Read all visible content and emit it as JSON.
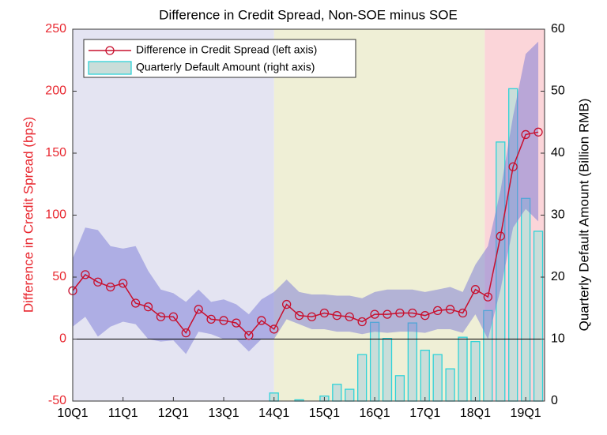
{
  "chart_data": {
    "type": "line_bar",
    "title": "Difference in Credit Spread, Non-SOE minus SOE",
    "ylabel": "Difference in Credit Spread (bps)",
    "y2label": "Quarterly Default Amount (Billion RMB)",
    "categories": [
      "10Q1",
      null,
      null,
      null,
      "11Q1",
      null,
      null,
      null,
      "12Q1",
      null,
      null,
      null,
      "13Q1",
      null,
      null,
      null,
      "14Q1",
      null,
      null,
      null,
      "15Q1",
      null,
      null,
      null,
      "16Q1",
      null,
      null,
      null,
      "17Q1",
      null,
      null,
      null,
      "18Q1",
      null,
      null,
      null,
      "19Q1",
      null
    ],
    "ylim": [
      -50,
      250
    ],
    "yticks": [
      -50,
      0,
      50,
      100,
      150,
      200,
      250
    ],
    "y2lim": [
      0,
      60
    ],
    "y2ticks": [
      0,
      10,
      20,
      30,
      40,
      50,
      60
    ],
    "reference_line": 0,
    "legend": "upper left",
    "series": [
      {
        "name": "Difference in Credit Spread (left axis)",
        "type": "line",
        "color": "#c8102e",
        "band_color": "#7777d6",
        "values": [
          39,
          52,
          46,
          42,
          45,
          29,
          26,
          18,
          18,
          5,
          24,
          16,
          15,
          13,
          3,
          15,
          8,
          28,
          19,
          18,
          21,
          19,
          18,
          14,
          20,
          20,
          21,
          21,
          19,
          23,
          24,
          21,
          40,
          34,
          83,
          139,
          165,
          167
        ],
        "band_upper": [
          65,
          90,
          88,
          75,
          73,
          75,
          55,
          40,
          37,
          30,
          40,
          30,
          32,
          28,
          20,
          32,
          38,
          48,
          38,
          36,
          36,
          35,
          35,
          33,
          38,
          40,
          40,
          40,
          38,
          40,
          42,
          38,
          60,
          75,
          120,
          180,
          230,
          240
        ],
        "band_lower": [
          10,
          18,
          2,
          10,
          14,
          12,
          0,
          -2,
          -1,
          -12,
          6,
          4,
          0,
          0,
          -10,
          0,
          0,
          16,
          12,
          8,
          8,
          6,
          6,
          4,
          6,
          5,
          6,
          6,
          5,
          8,
          8,
          5,
          20,
          0,
          40,
          90,
          105,
          95
        ]
      },
      {
        "name": "Quarterly Default Amount (right axis)",
        "type": "bar",
        "axis": "y2",
        "color": "#c9ddd9",
        "edge_color": "#2fd3d8",
        "values": [
          null,
          null,
          null,
          null,
          null,
          null,
          null,
          null,
          null,
          null,
          null,
          null,
          null,
          null,
          null,
          null,
          1.3,
          0,
          0.2,
          0,
          0.8,
          2.7,
          1.9,
          7.5,
          12.7,
          10.1,
          4.1,
          12.6,
          8.2,
          7.5,
          5.2,
          10.3,
          9.6,
          14.6,
          41.8,
          50.4,
          32.7,
          27.4
        ]
      }
    ]
  }
}
